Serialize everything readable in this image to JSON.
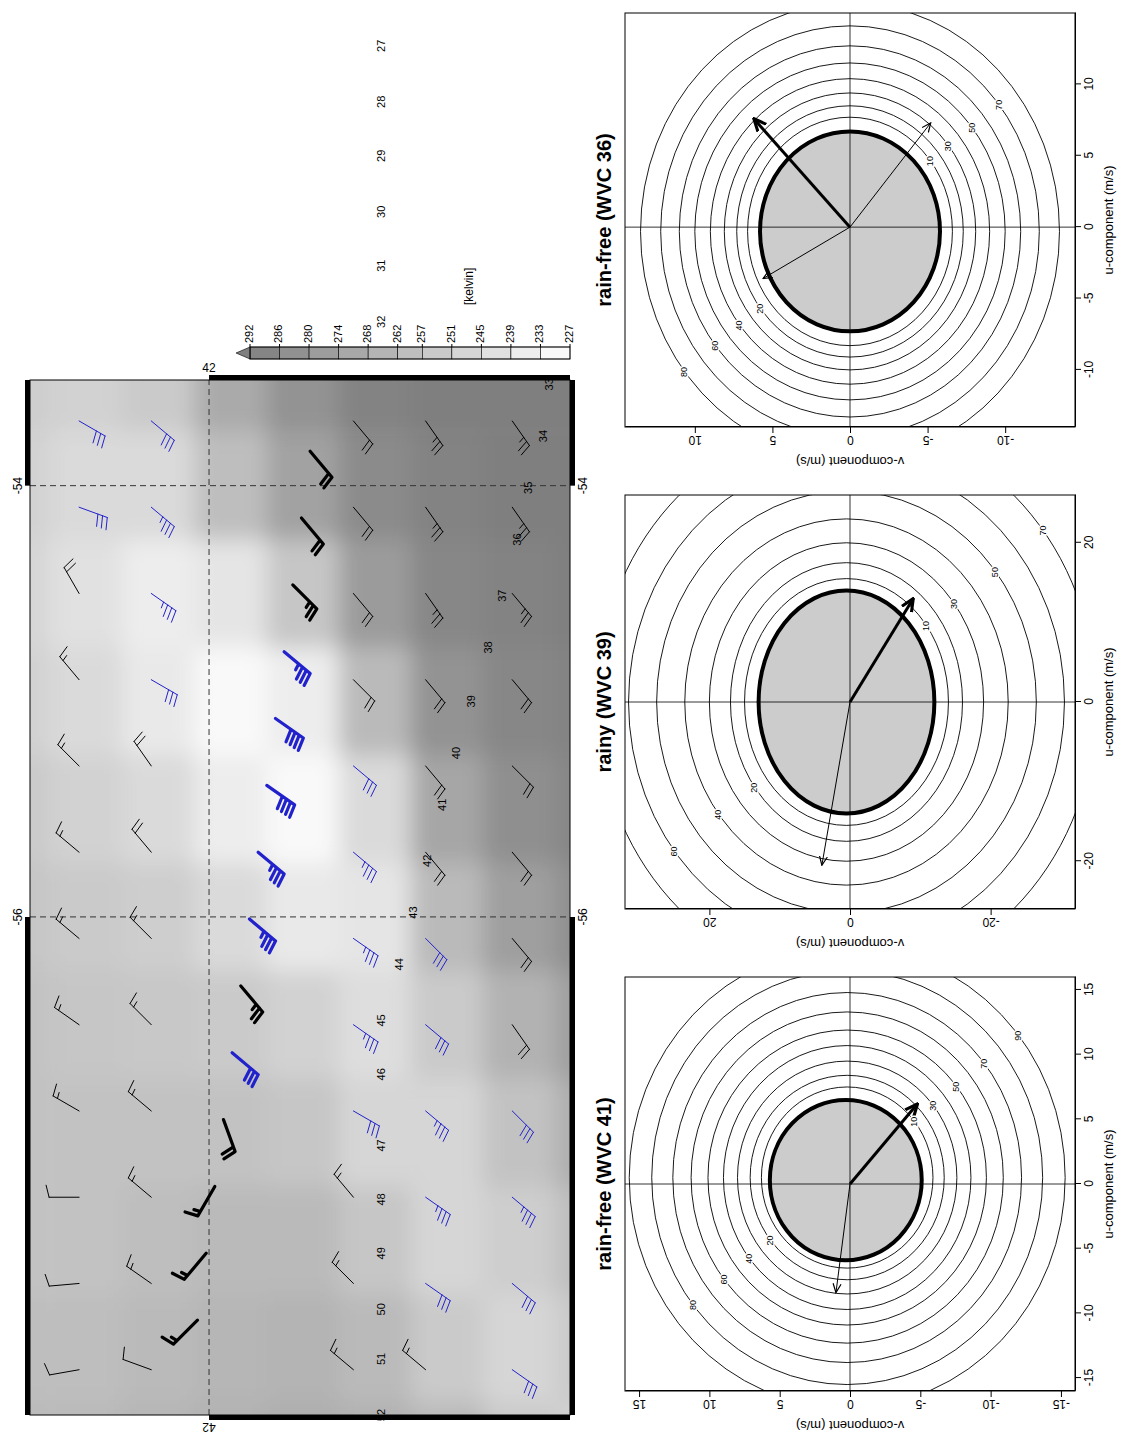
{
  "chart_data": [
    {
      "type": "map",
      "xlim": [
        -58.31,
        -53.51
      ],
      "ylim": [
        40.75,
        42.62
      ],
      "xticks": [
        -56,
        -54
      ],
      "yticks": [
        42
      ],
      "grid": true,
      "field": {
        "lon_bins": [
          -58.75,
          -58.25,
          -57.75,
          -57.25,
          -56.75,
          -56.25,
          -55.75,
          -55.25,
          -54.75,
          -54.25,
          -53.75,
          -53.25
        ],
        "lat_bins": [
          42.8,
          42.55,
          42.3,
          42.05,
          41.8,
          41.55,
          41.3,
          41.05,
          40.8,
          40.55
        ],
        "values": [
          [
            262,
            260,
            258,
            258,
            258,
            256,
            254,
            250,
            248,
            250,
            252
          ],
          [
            262,
            260,
            258,
            258,
            256,
            254,
            250,
            246,
            242,
            246,
            250
          ],
          [
            264,
            262,
            260,
            258,
            255,
            252,
            246,
            238,
            236,
            246,
            254
          ],
          [
            266,
            264,
            262,
            258,
            254,
            246,
            236,
            230,
            240,
            260,
            270
          ],
          [
            268,
            265,
            262,
            256,
            250,
            238,
            230,
            236,
            256,
            274,
            282
          ],
          [
            266,
            262,
            256,
            248,
            244,
            240,
            246,
            262,
            278,
            286,
            290
          ],
          [
            262,
            254,
            248,
            248,
            254,
            262,
            272,
            282,
            288,
            290,
            292
          ],
          [
            254,
            248,
            252,
            258,
            266,
            276,
            284,
            288,
            290,
            292,
            292
          ],
          [
            250,
            254,
            260,
            268,
            276,
            284,
            288,
            290,
            292,
            292,
            292
          ]
        ]
      },
      "colorbar": {
        "label": "[kelvin]",
        "range": [
          227,
          292
        ],
        "ticks": [
          292,
          286,
          280,
          274,
          268,
          262,
          257,
          251,
          245,
          239,
          233,
          227
        ]
      },
      "barbs": [
        {
          "color": "#000000",
          "line_style": "thin",
          "lon": [
            -56.5,
            -56.1,
            -55.7,
            -55.3,
            -54.9,
            -54.5,
            -54.1,
            -53.7,
            -58.1,
            -55.7,
            -55.3,
            -54.9,
            -54.5,
            -54.1,
            -53.7,
            -58.1,
            -57.7,
            -57.3,
            -54.9,
            -54.5,
            -54.1,
            -53.7,
            -58.1,
            -57.7,
            -57.3,
            -56.9,
            -56.5,
            -56.1,
            -55.7,
            -55.3,
            -58.1,
            -57.7,
            -57.3,
            -56.9,
            -56.5,
            -56.1,
            -55.7,
            -55.3,
            -54.9,
            -54.5
          ],
          "lat": [
            40.95,
            40.95,
            40.95,
            40.95,
            40.95,
            40.95,
            40.95,
            40.95,
            41.25,
            41.25,
            41.25,
            41.25,
            41.25,
            41.25,
            41.25,
            41.5,
            41.5,
            41.5,
            41.5,
            41.5,
            41.5,
            41.5,
            42.2,
            42.2,
            42.2,
            42.2,
            42.2,
            42.2,
            42.2,
            42.2,
            42.45,
            42.45,
            42.45,
            42.45,
            42.45,
            42.45,
            42.45,
            42.45,
            42.45,
            42.45
          ],
          "speed": [
            20,
            20,
            20,
            20,
            20,
            25,
            25,
            25,
            15,
            20,
            20,
            20,
            25,
            25,
            25,
            15,
            15,
            15,
            20,
            20,
            20,
            20,
            10,
            15,
            15,
            15,
            15,
            15,
            20,
            20,
            10,
            10,
            10,
            15,
            15,
            15,
            15,
            15,
            15,
            20
          ],
          "direction": [
            235,
            230,
            230,
            225,
            230,
            230,
            235,
            235,
            40,
            230,
            230,
            230,
            235,
            235,
            235,
            40,
            45,
            50,
            225,
            230,
            230,
            230,
            20,
            35,
            40,
            40,
            45,
            45,
            50,
            55,
            350,
            355,
            0,
            30,
            35,
            40,
            40,
            45,
            50,
            60
          ]
        },
        {
          "color": "#2222cc",
          "line_style": "thin",
          "lon": [
            -58.1,
            -57.7,
            -57.3,
            -56.9,
            -57.7,
            -57.3,
            -56.9,
            -56.5,
            -56.1,
            -56.9,
            -56.5,
            -56.1,
            -55.7,
            -55.3,
            -54.9,
            -54.5,
            -54.1,
            -53.7,
            -54.1,
            -53.7
          ],
          "lat": [
            40.95,
            40.95,
            40.95,
            40.95,
            41.25,
            41.25,
            41.25,
            41.25,
            41.25,
            41.5,
            41.5,
            41.5,
            41.5,
            41.5,
            42.2,
            42.2,
            42.2,
            42.2,
            42.45,
            42.45
          ],
          "speed": [
            30,
            30,
            35,
            30,
            30,
            35,
            35,
            30,
            30,
            30,
            35,
            35,
            35,
            30,
            30,
            35,
            35,
            30,
            30,
            30
          ],
          "direction": [
            215,
            220,
            220,
            225,
            215,
            215,
            220,
            220,
            225,
            210,
            215,
            215,
            220,
            220,
            210,
            215,
            220,
            220,
            200,
            210
          ]
        },
        {
          "color": "#000000",
          "line_style": "bold",
          "lon": [
            -53.84,
            -54.15,
            -54.46,
            -56.32,
            -56.94,
            -57.25,
            -57.56,
            -57.87
          ],
          "lat": [
            41.65,
            41.68,
            41.71,
            41.89,
            41.95,
            41.98,
            42.01,
            42.04
          ],
          "speed": [
            20,
            20,
            25,
            25,
            20,
            15,
            15,
            15
          ],
          "direction": [
            230,
            230,
            225,
            230,
            250,
            300,
            310,
            315
          ]
        },
        {
          "color": "#2222cc",
          "line_style": "bold",
          "lon": [
            -54.77,
            -55.08,
            -55.39,
            -55.7,
            -56.01,
            -56.63
          ],
          "lat": [
            41.74,
            41.77,
            41.8,
            41.83,
            41.86,
            41.92
          ],
          "speed": [
            35,
            40,
            40,
            35,
            35,
            30
          ],
          "direction": [
            220,
            215,
            215,
            220,
            220,
            220
          ]
        }
      ],
      "wvc_labels": {
        "labels": [
          27,
          28,
          29,
          30,
          31,
          32,
          33,
          34,
          35,
          36,
          37,
          38,
          39,
          40,
          41,
          42,
          43,
          44,
          45,
          46,
          47,
          48,
          49,
          50,
          51,
          52
        ],
        "lon": [
          -51.96,
          -52.22,
          -52.47,
          -52.73,
          -52.98,
          -53.24,
          -53.53,
          -53.77,
          -54.01,
          -54.25,
          -54.51,
          -54.75,
          -55.0,
          -55.24,
          -55.48,
          -55.74,
          -55.98,
          -56.22,
          -56.48,
          -56.73,
          -57.06,
          -57.31,
          -57.56,
          -57.82,
          -58.05,
          -58.31
        ],
        "lat": [
          41.4,
          41.4,
          41.4,
          41.4,
          41.4,
          41.4,
          40.82,
          40.84,
          40.89,
          40.93,
          40.98,
          41.03,
          41.09,
          41.14,
          41.19,
          41.24,
          41.29,
          41.34,
          41.4,
          41.4,
          41.4,
          41.4,
          41.4,
          41.4,
          41.4,
          41.4
        ]
      }
    },
    {
      "type": "contour",
      "title": "rain-free (WVC 41)",
      "xlabel": "u-component (m/s)",
      "ylabel": "v-component (m/s)",
      "xlim": [
        -16,
        16
      ],
      "ylim": [
        -16,
        16
      ],
      "xticks": [
        -15,
        -10,
        -5,
        0,
        5,
        10,
        15
      ],
      "yticks": [
        -15,
        -10,
        -5,
        0,
        5,
        10,
        15
      ],
      "reference": {
        "u": 0,
        "v": 0
      },
      "shaded": {
        "u0": 0.3,
        "v0": 0.3,
        "ru": 6.2,
        "rv": 5.4
      },
      "contours": [
        {
          "level": 10,
          "u0": 0.5,
          "v0": 0.2,
          "ru": 7.0,
          "rv": 6.1
        },
        {
          "level": 20,
          "u0": 0.5,
          "v0": 0.2,
          "ru": 7.9,
          "rv": 6.9
        },
        {
          "level": 30,
          "u0": 0.5,
          "v0": 0.2,
          "ru": 9.0,
          "rv": 7.8
        },
        {
          "level": 40,
          "u0": 0.5,
          "v0": 0.2,
          "ru": 10.2,
          "rv": 8.8
        },
        {
          "level": 50,
          "u0": 0.5,
          "v0": 0.2,
          "ru": 11.4,
          "rv": 9.9
        },
        {
          "level": 60,
          "u0": 0.5,
          "v0": 0.2,
          "ru": 12.8,
          "rv": 11.1
        },
        {
          "level": 70,
          "u0": 0.5,
          "v0": 0.2,
          "ru": 14.3,
          "rv": 12.4
        },
        {
          "level": 80,
          "u0": 0.5,
          "v0": 0.2,
          "ru": 16.0,
          "rv": 13.9
        },
        {
          "level": 90,
          "u0": 0.5,
          "v0": 0.2,
          "ru": 17.8,
          "rv": 15.5
        }
      ],
      "arrows": [
        {
          "u": 6.2,
          "v": -4.8,
          "line_style": "bold"
        },
        {
          "u": -8.4,
          "v": 1.0,
          "line_style": "thin"
        }
      ]
    },
    {
      "type": "contour",
      "title": "rainy (WVC 39)",
      "xlabel": "u-component (m/s)",
      "ylabel": "v-component (m/s)",
      "xlim": [
        -26,
        26
      ],
      "ylim": [
        -32,
        32
      ],
      "xticks": [
        -20,
        0,
        20
      ],
      "yticks": [
        -20,
        0,
        20
      ],
      "reference": {
        "u": 0,
        "v": 0
      },
      "shaded": {
        "u0": 0,
        "v0": 0.5,
        "ru": 14,
        "rv": 12.5
      },
      "contours": [
        {
          "level": 10,
          "u0": 0,
          "v0": 0.5,
          "ru": 15.5,
          "rv": 14.5
        },
        {
          "level": 20,
          "u0": 0,
          "v0": 0.5,
          "ru": 17.5,
          "rv": 16.5
        },
        {
          "level": 30,
          "u0": 0,
          "v0": 0.5,
          "ru": 20,
          "rv": 19.5
        },
        {
          "level": 40,
          "u0": 0,
          "v0": 0.5,
          "ru": 23,
          "rv": 23
        },
        {
          "level": 50,
          "u0": 0,
          "v0": 0.5,
          "ru": 26.5,
          "rv": 27
        },
        {
          "level": 60,
          "u0": 0,
          "v0": 0.5,
          "ru": 30.5,
          "rv": 31
        },
        {
          "level": 70,
          "u0": 0,
          "v0": 0.5,
          "ru": 35,
          "rv": 35.5
        }
      ],
      "arrows": [
        {
          "u": 13,
          "v": -9,
          "line_style": "bold"
        },
        {
          "u": -20.5,
          "v": 4,
          "line_style": "thin"
        }
      ]
    },
    {
      "type": "contour",
      "title": "rain-free (WVC 36)",
      "xlabel": "u-component (m/s)",
      "ylabel": "v-component (m/s)",
      "xlim": [
        -14,
        15
      ],
      "ylim": [
        -14.5,
        14.5
      ],
      "xticks": [
        -10,
        -5,
        0,
        5,
        10
      ],
      "yticks": [
        -10,
        -5,
        0,
        5,
        10
      ],
      "reference": {
        "u": 0,
        "v": 0
      },
      "shaded": {
        "u0": -0.3,
        "v0": 0,
        "ru": 7,
        "rv": 5.8
      },
      "contours": [
        {
          "level": 10,
          "u0": -0.3,
          "v0": 0,
          "ru": 8,
          "rv": 6.6
        },
        {
          "level": 20,
          "u0": -0.3,
          "v0": 0,
          "ru": 8.8,
          "rv": 7.3
        },
        {
          "level": 30,
          "u0": -0.3,
          "v0": 0,
          "ru": 9.7,
          "rv": 8.1
        },
        {
          "level": 40,
          "u0": -0.3,
          "v0": 0,
          "ru": 10.7,
          "rv": 9
        },
        {
          "level": 50,
          "u0": -0.3,
          "v0": 0,
          "ru": 11.8,
          "rv": 10
        },
        {
          "level": 60,
          "u0": -0.3,
          "v0": 0,
          "ru": 13,
          "rv": 11
        },
        {
          "level": 70,
          "u0": -0.3,
          "v0": 0,
          "ru": 14.4,
          "rv": 12.2
        },
        {
          "level": 80,
          "u0": -0.3,
          "v0": 0,
          "ru": 16,
          "rv": 13.5
        }
      ],
      "arrows": [
        {
          "u": 7.6,
          "v": 6.2,
          "line_style": "bold"
        },
        {
          "u": 7.3,
          "v": -5.2,
          "line_style": "thin"
        },
        {
          "u": -3.6,
          "v": 5.6,
          "line_style": "thin"
        }
      ]
    }
  ]
}
